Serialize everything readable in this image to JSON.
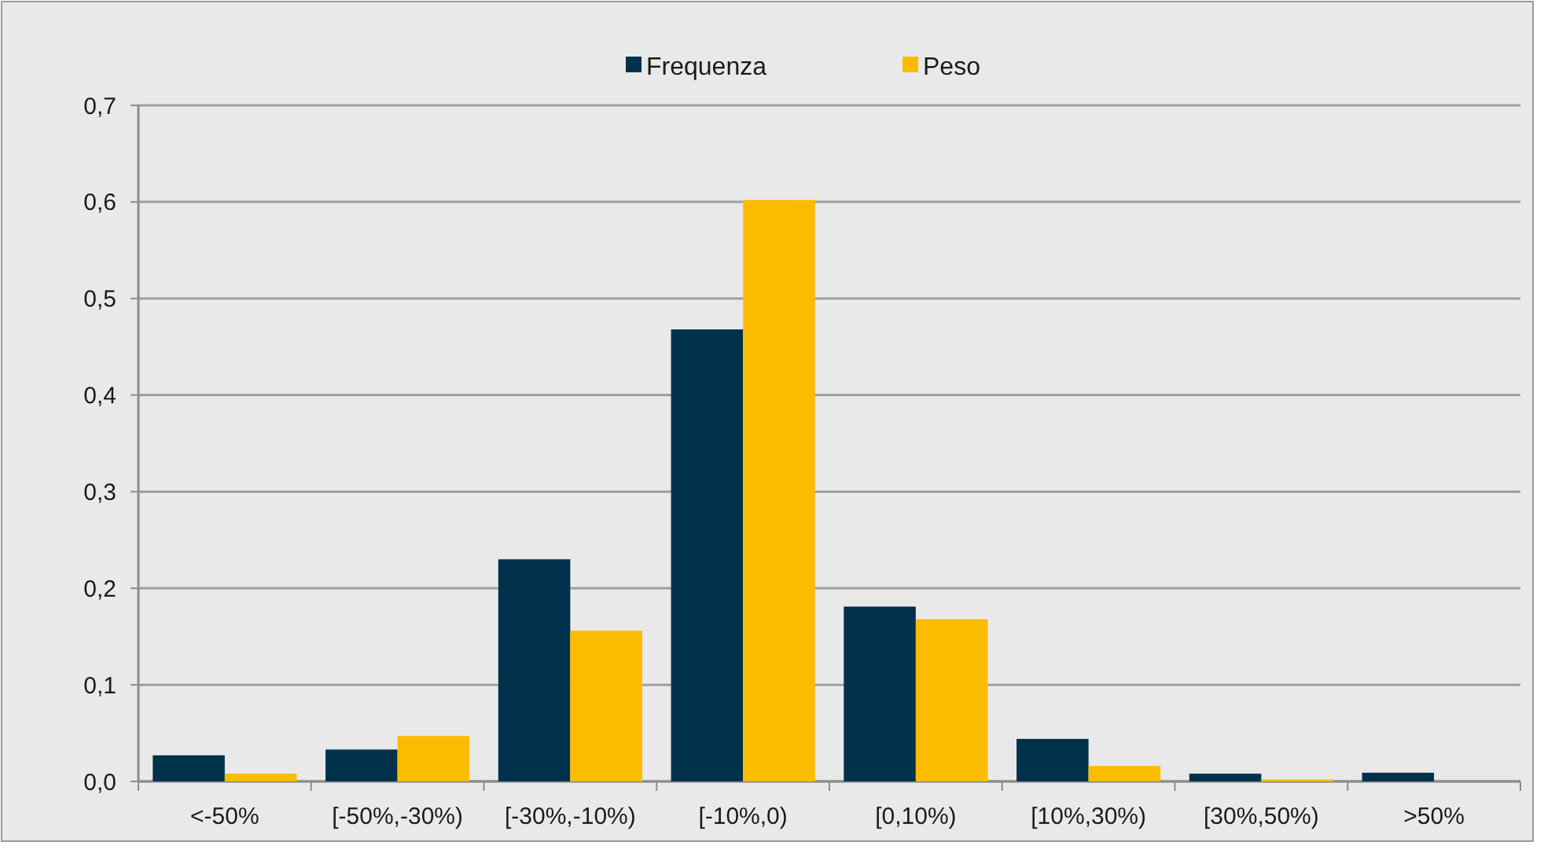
{
  "chart_data": {
    "type": "bar",
    "categories": [
      "<-50%",
      "[-50%,-30%)",
      "[-30%,-10%)",
      "[-10%,0)",
      "[0,10%)",
      "[10%,30%)",
      "[30%,50%)",
      ">50%"
    ],
    "series": [
      {
        "name": "Frequenza",
        "color": "#00324b",
        "values": [
          0.027,
          0.033,
          0.23,
          0.468,
          0.181,
          0.044,
          0.008,
          0.009
        ]
      },
      {
        "name": "Peso",
        "color": "#fbbc00",
        "values": [
          0.008,
          0.047,
          0.156,
          0.602,
          0.168,
          0.016,
          0.002,
          0
        ]
      }
    ],
    "ylim": [
      0,
      0.7
    ],
    "yticks": [
      {
        "value": 0,
        "label": "0,0"
      },
      {
        "value": 0.1,
        "label": "0,1"
      },
      {
        "value": 0.2,
        "label": "0,2"
      },
      {
        "value": 0.3,
        "label": "0,3"
      },
      {
        "value": 0.4,
        "label": "0,4"
      },
      {
        "value": 0.5,
        "label": "0,5"
      },
      {
        "value": 0.6,
        "label": "0,6"
      },
      {
        "value": 0.7,
        "label": "0,7"
      }
    ],
    "grid": "y",
    "legend": "top"
  }
}
